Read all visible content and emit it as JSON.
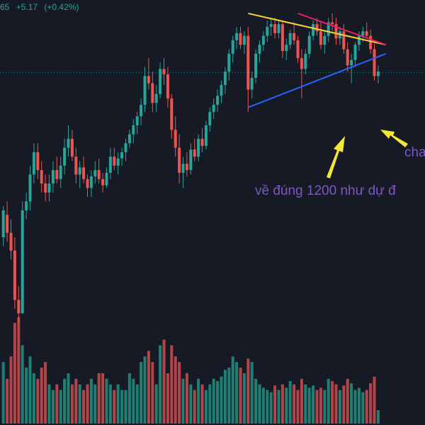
{
  "header": {
    "price_tail": "65",
    "change": "+5.17",
    "change_pct": "(+0.42%)"
  },
  "annotations": {
    "main_text": "về đúng 1200 như dự đ",
    "side_text": "cha"
  },
  "colors": {
    "background": "#161a25",
    "up": "#26a69a",
    "down": "#ef5350",
    "volume_up": "#1e7f74",
    "volume_down": "#b5444a",
    "trend_upper": "#f0d43a",
    "trend_upper2": "#e91e63",
    "trend_lower": "#2962ff",
    "arrow": "#f5e63a",
    "note": "#7e57c2",
    "price_line": "#26a69a"
  },
  "chart_data": {
    "type": "candlestick",
    "price_range": [
      945,
      1305
    ],
    "volume_range": [
      0,
      100
    ],
    "current_price_level": 1224,
    "candles": [
      [
        1040,
        1075,
        1030,
        1070,
        55
      ],
      [
        1065,
        1080,
        1035,
        1045,
        40
      ],
      [
        1045,
        1060,
        1015,
        1025,
        60
      ],
      [
        1025,
        1040,
        960,
        970,
        90
      ],
      [
        970,
        985,
        945,
        955,
        95
      ],
      [
        955,
        1080,
        955,
        1070,
        70
      ],
      [
        1070,
        1090,
        1060,
        1080,
        50
      ],
      [
        1080,
        1120,
        1070,
        1110,
        60
      ],
      [
        1110,
        1145,
        1100,
        1135,
        45
      ],
      [
        1135,
        1145,
        1105,
        1115,
        40
      ],
      [
        1115,
        1125,
        1090,
        1100,
        50
      ],
      [
        1100,
        1110,
        1080,
        1090,
        55
      ],
      [
        1090,
        1110,
        1080,
        1100,
        35
      ],
      [
        1100,
        1125,
        1090,
        1115,
        30
      ],
      [
        1115,
        1130,
        1100,
        1105,
        35
      ],
      [
        1105,
        1130,
        1095,
        1120,
        30
      ],
      [
        1120,
        1150,
        1110,
        1140,
        40
      ],
      [
        1140,
        1165,
        1130,
        1150,
        45
      ],
      [
        1150,
        1160,
        1125,
        1130,
        35
      ],
      [
        1130,
        1140,
        1100,
        1110,
        40
      ],
      [
        1110,
        1125,
        1095,
        1118,
        35
      ],
      [
        1118,
        1130,
        1100,
        1105,
        30
      ],
      [
        1105,
        1110,
        1085,
        1095,
        35
      ],
      [
        1095,
        1115,
        1085,
        1108,
        40
      ],
      [
        1108,
        1125,
        1100,
        1115,
        35
      ],
      [
        1115,
        1128,
        1100,
        1105,
        45
      ],
      [
        1105,
        1112,
        1090,
        1098,
        45
      ],
      [
        1098,
        1118,
        1095,
        1112,
        40
      ],
      [
        1112,
        1140,
        1105,
        1130,
        35
      ],
      [
        1130,
        1140,
        1115,
        1120,
        30
      ],
      [
        1120,
        1135,
        1110,
        1128,
        35
      ],
      [
        1128,
        1140,
        1120,
        1135,
        30
      ],
      [
        1135,
        1150,
        1125,
        1145,
        30
      ],
      [
        1145,
        1160,
        1140,
        1155,
        45
      ],
      [
        1155,
        1172,
        1145,
        1165,
        40
      ],
      [
        1165,
        1180,
        1155,
        1175,
        35
      ],
      [
        1175,
        1195,
        1165,
        1188,
        55
      ],
      [
        1188,
        1230,
        1180,
        1220,
        60
      ],
      [
        1220,
        1240,
        1205,
        1212,
        65
      ],
      [
        1212,
        1225,
        1180,
        1190,
        55
      ],
      [
        1190,
        1210,
        1180,
        1200,
        35
      ],
      [
        1200,
        1235,
        1195,
        1228,
        70
      ],
      [
        1228,
        1240,
        1210,
        1222,
        75
      ],
      [
        1222,
        1230,
        1185,
        1195,
        45
      ],
      [
        1195,
        1200,
        1150,
        1160,
        70
      ],
      [
        1160,
        1175,
        1130,
        1140,
        60
      ],
      [
        1140,
        1155,
        1100,
        1112,
        55
      ],
      [
        1112,
        1130,
        1095,
        1122,
        40
      ],
      [
        1122,
        1135,
        1108,
        1115,
        45
      ],
      [
        1115,
        1145,
        1110,
        1138,
        35
      ],
      [
        1138,
        1150,
        1125,
        1130,
        30
      ],
      [
        1130,
        1155,
        1125,
        1150,
        40
      ],
      [
        1150,
        1162,
        1135,
        1142,
        35
      ],
      [
        1142,
        1170,
        1138,
        1165,
        30
      ],
      [
        1165,
        1185,
        1158,
        1180,
        35
      ],
      [
        1180,
        1195,
        1172,
        1188,
        40
      ],
      [
        1188,
        1205,
        1180,
        1198,
        38
      ],
      [
        1198,
        1215,
        1190,
        1210,
        42
      ],
      [
        1210,
        1230,
        1200,
        1225,
        48
      ],
      [
        1225,
        1250,
        1215,
        1245,
        50
      ],
      [
        1245,
        1265,
        1235,
        1260,
        60
      ],
      [
        1260,
        1275,
        1250,
        1268,
        55
      ],
      [
        1268,
        1275,
        1250,
        1255,
        50
      ],
      [
        1255,
        1270,
        1245,
        1265,
        45
      ],
      [
        1265,
        1275,
        1180,
        1205,
        58
      ],
      [
        1205,
        1225,
        1195,
        1218,
        55
      ],
      [
        1218,
        1250,
        1212,
        1245,
        40
      ],
      [
        1245,
        1260,
        1235,
        1255,
        35
      ],
      [
        1255,
        1270,
        1248,
        1265,
        32
      ],
      [
        1265,
        1282,
        1258,
        1275,
        30
      ],
      [
        1275,
        1285,
        1265,
        1278,
        28
      ],
      [
        1278,
        1285,
        1262,
        1268,
        34
      ],
      [
        1268,
        1282,
        1262,
        1278,
        30
      ],
      [
        1278,
        1282,
        1240,
        1248,
        35
      ],
      [
        1248,
        1262,
        1238,
        1255,
        32
      ],
      [
        1255,
        1272,
        1250,
        1268,
        38
      ],
      [
        1268,
        1280,
        1255,
        1260,
        35
      ],
      [
        1260,
        1265,
        1235,
        1240,
        30
      ],
      [
        1240,
        1250,
        1195,
        1228,
        40
      ],
      [
        1228,
        1250,
        1222,
        1245,
        35
      ],
      [
        1245,
        1270,
        1240,
        1265,
        32
      ],
      [
        1265,
        1282,
        1260,
        1278,
        34
      ],
      [
        1278,
        1285,
        1265,
        1270,
        30
      ],
      [
        1270,
        1280,
        1250,
        1255,
        32
      ],
      [
        1255,
        1270,
        1245,
        1265,
        30
      ],
      [
        1265,
        1285,
        1258,
        1280,
        40
      ],
      [
        1280,
        1290,
        1270,
        1278,
        38
      ],
      [
        1278,
        1285,
        1255,
        1262,
        35
      ],
      [
        1262,
        1275,
        1255,
        1270,
        30
      ],
      [
        1270,
        1278,
        1245,
        1250,
        34
      ],
      [
        1250,
        1258,
        1225,
        1232,
        40
      ],
      [
        1232,
        1245,
        1212,
        1238,
        36
      ],
      [
        1238,
        1258,
        1230,
        1255,
        30
      ],
      [
        1255,
        1270,
        1248,
        1265,
        32
      ],
      [
        1265,
        1275,
        1258,
        1270,
        28
      ],
      [
        1270,
        1280,
        1262,
        1265,
        30
      ],
      [
        1265,
        1272,
        1245,
        1250,
        36
      ],
      [
        1250,
        1256,
        1215,
        1220,
        42
      ],
      [
        1220,
        1232,
        1212,
        1225,
        12
      ]
    ],
    "trendlines": [
      {
        "name": "upper",
        "from": [
          64,
          1290
        ],
        "to": [
          100,
          1255
        ]
      },
      {
        "name": "upper2",
        "from": [
          77,
          1290
        ],
        "to": [
          100,
          1255
        ]
      },
      {
        "name": "lower",
        "from": [
          64,
          1185
        ],
        "to": [
          100,
          1245
        ]
      }
    ]
  }
}
